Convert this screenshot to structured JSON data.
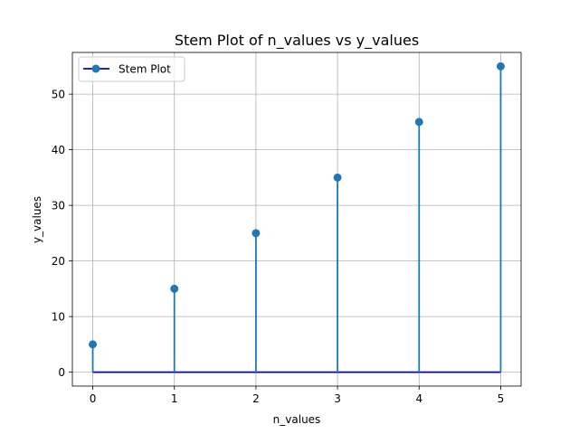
{
  "chart_data": {
    "type": "stem",
    "title": "Stem Plot of n_values vs y_values",
    "xlabel": "n_values",
    "ylabel": "y_values",
    "x": [
      0,
      1,
      2,
      3,
      4,
      5
    ],
    "y": [
      5,
      15,
      25,
      35,
      45,
      55
    ],
    "baseline": 0,
    "xlim": [
      -0.25,
      5.25
    ],
    "ylim": [
      -2.5,
      57.5
    ],
    "xticks": [
      "0",
      "1",
      "2",
      "3",
      "4",
      "5"
    ],
    "yticks": [
      "0",
      "10",
      "20",
      "30",
      "40",
      "50"
    ],
    "grid": true,
    "legend": {
      "placement": "top-left",
      "entries": [
        "Stem Plot"
      ]
    },
    "colors": {
      "stem": "#1f77b4",
      "marker": "#1f77b4",
      "baseline": "#0000cc",
      "grid": "#b0b0b0"
    }
  }
}
